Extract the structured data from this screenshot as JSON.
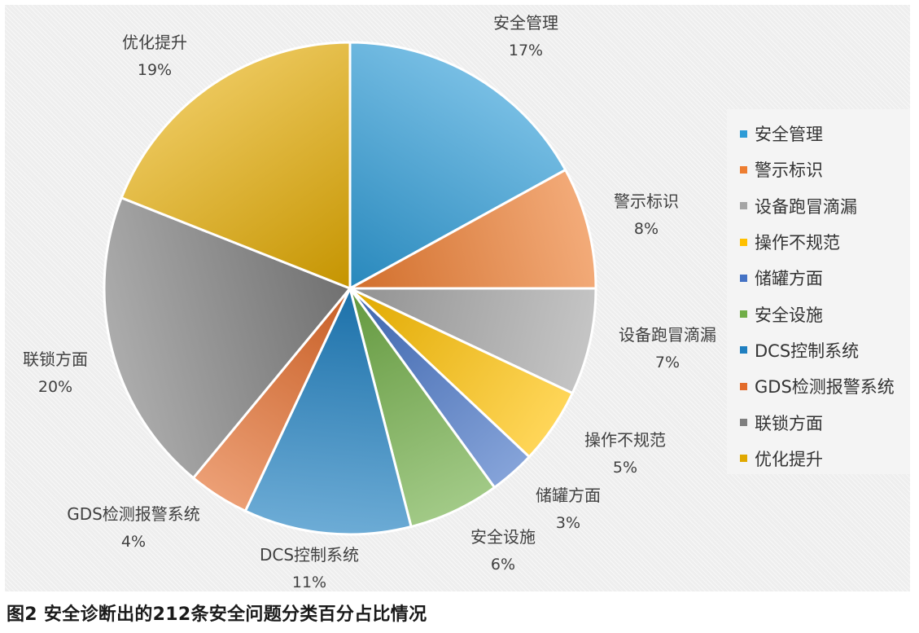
{
  "caption": "图2 安全诊断出的212条安全问题分类百分占比情况",
  "chart_data": {
    "type": "pie",
    "legend_position": "right",
    "slices": [
      {
        "label": "安全管理",
        "value": 17,
        "value_label": "17%",
        "color": "#2e9bd6"
      },
      {
        "label": "警示标识",
        "value": 8,
        "value_label": "8%",
        "color": "#ed7d31"
      },
      {
        "label": "设备跑冒滴漏",
        "value": 7,
        "value_label": "7%",
        "color": "#a5a5a5"
      },
      {
        "label": "操作不规范",
        "value": 5,
        "value_label": "5%",
        "color": "#ffc000"
      },
      {
        "label": "储罐方面",
        "value": 3,
        "value_label": "3%",
        "color": "#4472c4"
      },
      {
        "label": "安全设施",
        "value": 6,
        "value_label": "6%",
        "color": "#70ad47"
      },
      {
        "label": "DCS控制系统",
        "value": 11,
        "value_label": "11%",
        "color": "#1f7fc0"
      },
      {
        "label": "GDS检测报警系统",
        "value": 4,
        "value_label": "4%",
        "color": "#e26b2a"
      },
      {
        "label": "联锁方面",
        "value": 20,
        "value_label": "20%",
        "color": "#7f7f7f"
      },
      {
        "label": "优化提升",
        "value": 19,
        "value_label": "19%",
        "color": "#e0a800"
      }
    ]
  }
}
